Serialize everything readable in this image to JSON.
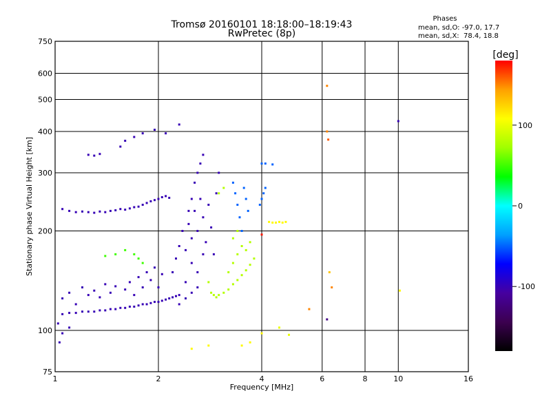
{
  "chart_data": {
    "type": "scatter",
    "title": "Tromsø 20160101 18:18:00–18:19:43",
    "subtitle": "RwPretec (8p)",
    "xlabel": "Frequency [MHz]",
    "ylabel": "Stationary phase Virtual Height [km]",
    "x_scale": "log",
    "y_scale": "log",
    "xlim": [
      1,
      16
    ],
    "ylim": [
      75,
      750
    ],
    "x_ticks": [
      1,
      2,
      4,
      6,
      8,
      10,
      16
    ],
    "x_tick_labels": [
      "1",
      "2",
      "4",
      "6",
      "8",
      "10",
      "16"
    ],
    "y_ticks": [
      75,
      100,
      200,
      300,
      400,
      500,
      600,
      750
    ],
    "y_tick_labels": [
      "75",
      "100",
      "200",
      "300",
      "400",
      "500",
      "600",
      "750"
    ],
    "grid": true,
    "phase_note": {
      "heading": "Phases",
      "line_o": "mean, sd,O: -97.0, 17.7",
      "line_x": "mean, sd,X:  78.4, 18.8"
    },
    "colorbar": {
      "label": "[deg]",
      "range": [
        -180,
        180
      ],
      "ticks": [
        100,
        0,
        -100
      ],
      "tick_labels": [
        "100",
        "0",
        "-100"
      ],
      "colors": [
        "#000000",
        "#3c0050",
        "#4600a0",
        "#0000ff",
        "#00a0ff",
        "#00ffff",
        "#00ff00",
        "#a0ff00",
        "#ffff00",
        "#ffa000",
        "#ff0000"
      ]
    },
    "series": [
      {
        "points": [
          [
            1.05,
            233,
            -100
          ],
          [
            1.1,
            230,
            -100
          ],
          [
            1.15,
            228,
            -100
          ],
          [
            1.2,
            229,
            -100
          ],
          [
            1.25,
            228,
            -100
          ],
          [
            1.3,
            227,
            -100
          ],
          [
            1.35,
            229,
            -100
          ],
          [
            1.4,
            228,
            -100
          ],
          [
            1.45,
            230,
            -100
          ],
          [
            1.5,
            231,
            -100
          ],
          [
            1.55,
            233,
            -100
          ],
          [
            1.6,
            232,
            -100
          ],
          [
            1.65,
            234,
            -100
          ],
          [
            1.7,
            236,
            -100
          ],
          [
            1.75,
            237,
            -100
          ],
          [
            1.8,
            240,
            -100
          ],
          [
            1.85,
            243,
            -100
          ],
          [
            1.9,
            246,
            -100
          ],
          [
            1.95,
            248,
            -100
          ],
          [
            2.0,
            250,
            -100
          ],
          [
            2.05,
            253,
            -100
          ],
          [
            2.1,
            255,
            -100
          ],
          [
            2.15,
            252,
            -100
          ],
          [
            1.25,
            340,
            -100
          ],
          [
            1.3,
            338,
            -100
          ],
          [
            1.35,
            342,
            -100
          ],
          [
            1.55,
            360,
            -100
          ],
          [
            1.6,
            375,
            -100
          ],
          [
            1.7,
            385,
            -100
          ],
          [
            1.8,
            395,
            -100
          ],
          [
            1.95,
            405,
            -100
          ],
          [
            2.1,
            395,
            -100
          ],
          [
            2.3,
            420,
            -100
          ],
          [
            1.05,
            112,
            -100
          ],
          [
            1.1,
            113,
            -100
          ],
          [
            1.15,
            113,
            -100
          ],
          [
            1.2,
            114,
            -100
          ],
          [
            1.25,
            114,
            -100
          ],
          [
            1.3,
            114,
            -100
          ],
          [
            1.35,
            115,
            -100
          ],
          [
            1.4,
            115,
            -100
          ],
          [
            1.45,
            116,
            -100
          ],
          [
            1.5,
            116,
            -100
          ],
          [
            1.55,
            117,
            -100
          ],
          [
            1.6,
            117,
            -100
          ],
          [
            1.65,
            118,
            -100
          ],
          [
            1.7,
            118,
            -100
          ],
          [
            1.75,
            119,
            -100
          ],
          [
            1.8,
            120,
            -100
          ],
          [
            1.85,
            120,
            -100
          ],
          [
            1.9,
            121,
            -100
          ],
          [
            1.95,
            122,
            -100
          ],
          [
            2.0,
            122,
            -100
          ],
          [
            2.05,
            123,
            -100
          ],
          [
            2.1,
            124,
            -100
          ],
          [
            2.15,
            125,
            -100
          ],
          [
            2.2,
            126,
            -100
          ],
          [
            2.25,
            127,
            -100
          ],
          [
            2.3,
            128,
            -100
          ],
          [
            1.05,
            125,
            -100
          ],
          [
            1.1,
            130,
            -100
          ],
          [
            1.15,
            120,
            -100
          ],
          [
            1.2,
            135,
            -100
          ],
          [
            1.25,
            128,
            -100
          ],
          [
            1.3,
            132,
            -100
          ],
          [
            1.35,
            126,
            -100
          ],
          [
            1.4,
            138,
            -100
          ],
          [
            1.45,
            130,
            -100
          ],
          [
            1.5,
            136,
            -100
          ],
          [
            1.6,
            133,
            -100
          ],
          [
            1.65,
            140,
            -100
          ],
          [
            1.7,
            128,
            -100
          ],
          [
            1.75,
            145,
            -100
          ],
          [
            1.8,
            135,
            -100
          ],
          [
            1.85,
            150,
            -100
          ],
          [
            1.9,
            142,
            -100
          ],
          [
            1.95,
            155,
            -100
          ],
          [
            2.0,
            135,
            -100
          ],
          [
            2.05,
            148,
            -100
          ],
          [
            1.02,
            105,
            -100
          ],
          [
            1.05,
            98,
            -100
          ],
          [
            1.03,
            92,
            -100
          ],
          [
            1.1,
            102,
            -100
          ],
          [
            2.2,
            150,
            -100
          ],
          [
            2.25,
            165,
            -100
          ],
          [
            2.3,
            180,
            -100
          ],
          [
            2.35,
            200,
            -100
          ],
          [
            2.4,
            175,
            -100
          ],
          [
            2.45,
            210,
            -100
          ],
          [
            2.5,
            190,
            -100
          ],
          [
            2.55,
            230,
            -100
          ],
          [
            2.6,
            200,
            -100
          ],
          [
            2.65,
            250,
            -100
          ],
          [
            2.7,
            220,
            -100
          ],
          [
            2.75,
            185,
            -100
          ],
          [
            2.8,
            240,
            -100
          ],
          [
            2.85,
            205,
            -100
          ],
          [
            2.9,
            170,
            -100
          ],
          [
            2.95,
            260,
            -100
          ],
          [
            3.0,
            300,
            -100
          ],
          [
            2.4,
            140,
            -100
          ],
          [
            2.5,
            160,
            -100
          ],
          [
            2.6,
            150,
            -100
          ],
          [
            2.7,
            170,
            -100
          ],
          [
            2.55,
            280,
            -100
          ],
          [
            2.6,
            300,
            -100
          ],
          [
            2.65,
            320,
            -100
          ],
          [
            2.7,
            340,
            -100
          ],
          [
            2.5,
            250,
            -100
          ],
          [
            2.45,
            230,
            -100
          ],
          [
            2.3,
            120,
            -100
          ],
          [
            2.4,
            125,
            -100
          ],
          [
            2.5,
            130,
            -100
          ],
          [
            2.6,
            135,
            -100
          ],
          [
            3.3,
            280,
            -50
          ],
          [
            3.35,
            260,
            -50
          ],
          [
            3.4,
            240,
            -50
          ],
          [
            3.45,
            220,
            -50
          ],
          [
            3.5,
            200,
            -50
          ],
          [
            3.55,
            270,
            -50
          ],
          [
            3.6,
            250,
            -50
          ],
          [
            3.65,
            230,
            -50
          ],
          [
            3.95,
            240,
            -50
          ],
          [
            4.0,
            250,
            -50
          ],
          [
            4.05,
            260,
            -50
          ],
          [
            4.1,
            270,
            -50
          ],
          [
            4.0,
            320,
            -50
          ],
          [
            4.1,
            320,
            -50
          ],
          [
            4.3,
            318,
            -50
          ],
          [
            2.8,
            140,
            80
          ],
          [
            2.85,
            130,
            80
          ],
          [
            2.9,
            128,
            80
          ],
          [
            2.95,
            126,
            80
          ],
          [
            3.0,
            128,
            80
          ],
          [
            3.1,
            130,
            80
          ],
          [
            3.2,
            133,
            80
          ],
          [
            3.3,
            138,
            80
          ],
          [
            3.4,
            142,
            80
          ],
          [
            3.5,
            147,
            80
          ],
          [
            3.6,
            152,
            80
          ],
          [
            3.7,
            158,
            80
          ],
          [
            3.8,
            165,
            80
          ],
          [
            3.2,
            150,
            80
          ],
          [
            3.3,
            160,
            80
          ],
          [
            3.4,
            170,
            80
          ],
          [
            3.5,
            180,
            80
          ],
          [
            3.6,
            175,
            80
          ],
          [
            3.7,
            185,
            80
          ],
          [
            3.3,
            190,
            80
          ],
          [
            3.4,
            200,
            80
          ],
          [
            3.0,
            260,
            80
          ],
          [
            3.1,
            270,
            80
          ],
          [
            1.5,
            170,
            50
          ],
          [
            1.6,
            175,
            50
          ],
          [
            1.7,
            170,
            50
          ],
          [
            1.75,
            165,
            50
          ],
          [
            1.8,
            160,
            50
          ],
          [
            1.4,
            168,
            50
          ],
          [
            4.2,
            213,
            110
          ],
          [
            4.3,
            212,
            110
          ],
          [
            4.4,
            212,
            110
          ],
          [
            4.5,
            213,
            110
          ],
          [
            4.6,
            212,
            110
          ],
          [
            4.7,
            213,
            110
          ],
          [
            6.2,
            550,
            150
          ],
          [
            6.2,
            400,
            150
          ],
          [
            6.25,
            378,
            160
          ],
          [
            6.3,
            150,
            130
          ],
          [
            6.4,
            135,
            150
          ],
          [
            6.2,
            108,
            -120
          ],
          [
            4.0,
            98,
            110
          ],
          [
            4.5,
            102,
            100
          ],
          [
            4.8,
            97,
            100
          ],
          [
            3.5,
            90,
            110
          ],
          [
            3.7,
            92,
            110
          ],
          [
            2.5,
            88,
            110
          ],
          [
            2.8,
            90,
            110
          ],
          [
            10.0,
            430,
            -100
          ],
          [
            10.1,
            132,
            110
          ],
          [
            4.0,
            195,
            175
          ],
          [
            5.5,
            116,
            150
          ]
        ]
      }
    ]
  }
}
